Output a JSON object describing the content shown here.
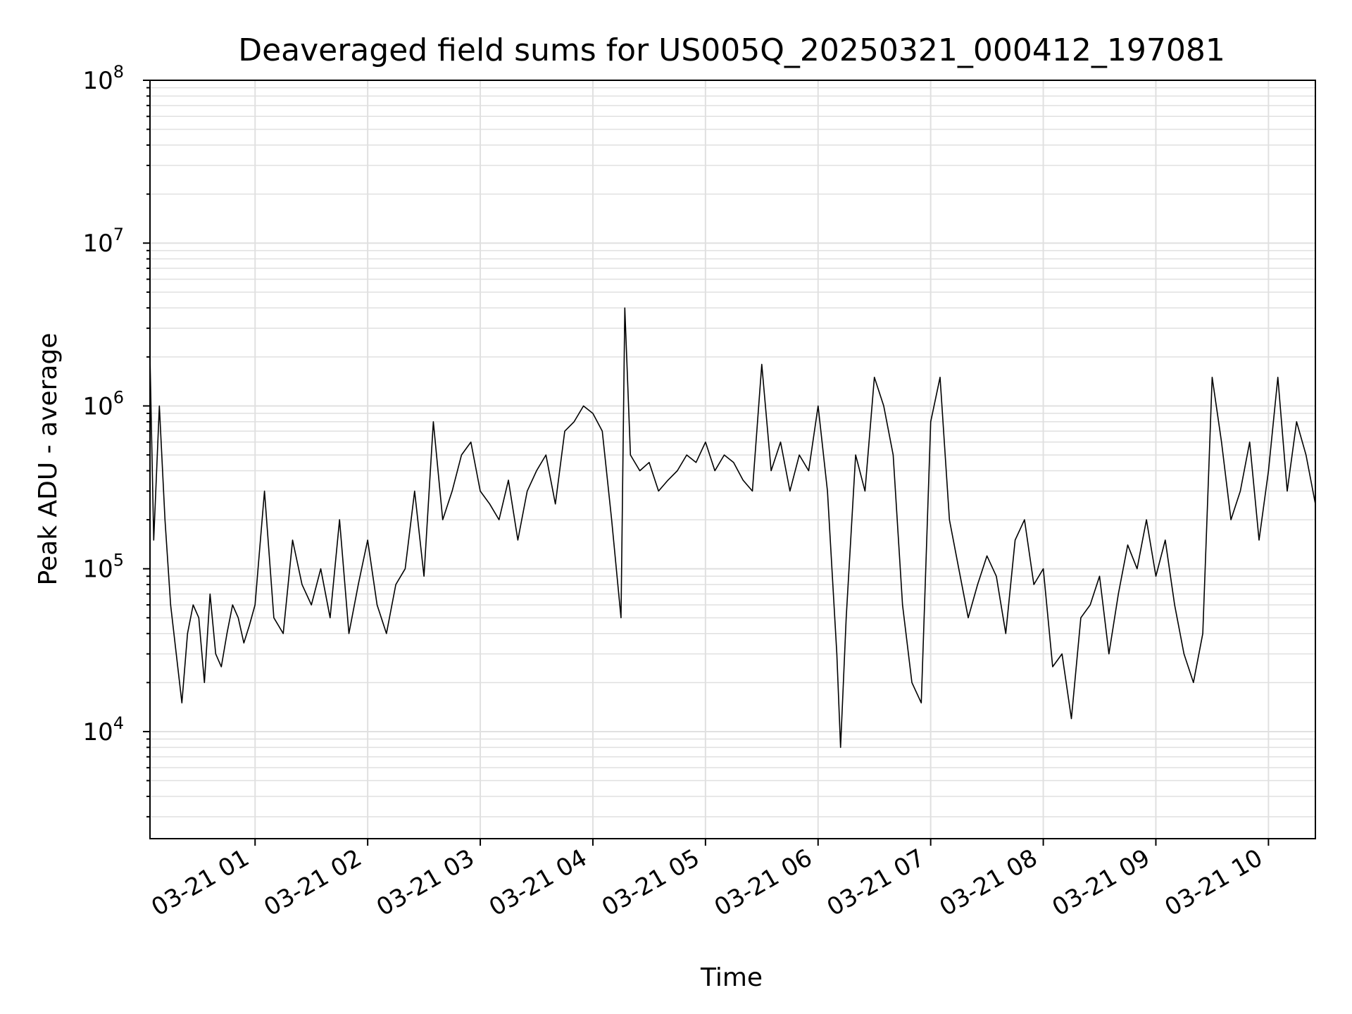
{
  "chart_data": {
    "type": "line",
    "title": "Deaveraged field sums for US005Q_20250321_000412_197081",
    "xlabel": "Time",
    "ylabel": "Peak ADU - average",
    "yscale": "log",
    "ylim": [
      2200,
      100000000
    ],
    "y_ticks": [
      {
        "value": 10000,
        "base": "10",
        "exp": "4"
      },
      {
        "value": 100000,
        "base": "10",
        "exp": "5"
      },
      {
        "value": 1000000,
        "base": "10",
        "exp": "6"
      },
      {
        "value": 10000000,
        "base": "10",
        "exp": "7"
      },
      {
        "value": 100000000,
        "base": "10",
        "exp": "8"
      }
    ],
    "xlim": [
      "03-21 00:04",
      "03-21 10:25"
    ],
    "x_ticks": [
      {
        "value": "03-21 01:00",
        "label": "03-21 01"
      },
      {
        "value": "03-21 02:00",
        "label": "03-21 02"
      },
      {
        "value": "03-21 03:00",
        "label": "03-21 03"
      },
      {
        "value": "03-21 04:00",
        "label": "03-21 04"
      },
      {
        "value": "03-21 05:00",
        "label": "03-21 05"
      },
      {
        "value": "03-21 06:00",
        "label": "03-21 06"
      },
      {
        "value": "03-21 07:00",
        "label": "03-21 07"
      },
      {
        "value": "03-21 08:00",
        "label": "03-21 08"
      },
      {
        "value": "03-21 09:00",
        "label": "03-21 09"
      },
      {
        "value": "03-21 10:00",
        "label": "03-21 10"
      }
    ],
    "grid": true,
    "line_color": "#000000",
    "series": [
      {
        "x": [
          "03-21 00:04",
          "03-21 00:06",
          "03-21 00:09",
          "03-21 00:12",
          "03-21 00:15",
          "03-21 00:18",
          "03-21 00:21",
          "03-21 00:24",
          "03-21 00:27",
          "03-21 00:30",
          "03-21 00:33",
          "03-21 00:36",
          "03-21 00:39",
          "03-21 00:42",
          "03-21 00:45",
          "03-21 00:48",
          "03-21 00:51",
          "03-21 00:54",
          "03-21 00:57",
          "03-21 01:00",
          "03-21 01:05",
          "03-21 01:10",
          "03-21 01:15",
          "03-21 01:20",
          "03-21 01:25",
          "03-21 01:30",
          "03-21 01:35",
          "03-21 01:40",
          "03-21 01:45",
          "03-21 01:50",
          "03-21 01:55",
          "03-21 02:00",
          "03-21 02:05",
          "03-21 02:10",
          "03-21 02:15",
          "03-21 02:20",
          "03-21 02:25",
          "03-21 02:30",
          "03-21 02:35",
          "03-21 02:40",
          "03-21 02:45",
          "03-21 02:50",
          "03-21 02:55",
          "03-21 03:00",
          "03-21 03:05",
          "03-21 03:10",
          "03-21 03:15",
          "03-21 03:20",
          "03-21 03:25",
          "03-21 03:30",
          "03-21 03:35",
          "03-21 03:40",
          "03-21 03:45",
          "03-21 03:50",
          "03-21 03:55",
          "03-21 04:00",
          "03-21 04:05",
          "03-21 04:10",
          "03-21 04:15",
          "03-21 04:17",
          "03-21 04:20",
          "03-21 04:25",
          "03-21 04:30",
          "03-21 04:35",
          "03-21 04:40",
          "03-21 04:45",
          "03-21 04:50",
          "03-21 04:55",
          "03-21 05:00",
          "03-21 05:05",
          "03-21 05:10",
          "03-21 05:15",
          "03-21 05:20",
          "03-21 05:25",
          "03-21 05:30",
          "03-21 05:35",
          "03-21 05:40",
          "03-21 05:45",
          "03-21 05:50",
          "03-21 05:55",
          "03-21 06:00",
          "03-21 06:05",
          "03-21 06:10",
          "03-21 06:12",
          "03-21 06:15",
          "03-21 06:20",
          "03-21 06:25",
          "03-21 06:30",
          "03-21 06:35",
          "03-21 06:40",
          "03-21 06:45",
          "03-21 06:50",
          "03-21 06:55",
          "03-21 07:00",
          "03-21 07:05",
          "03-21 07:10",
          "03-21 07:15",
          "03-21 07:20",
          "03-21 07:25",
          "03-21 07:30",
          "03-21 07:35",
          "03-21 07:40",
          "03-21 07:45",
          "03-21 07:50",
          "03-21 07:55",
          "03-21 08:00",
          "03-21 08:05",
          "03-21 08:10",
          "03-21 08:15",
          "03-21 08:20",
          "03-21 08:25",
          "03-21 08:30",
          "03-21 08:35",
          "03-21 08:40",
          "03-21 08:45",
          "03-21 08:50",
          "03-21 08:55",
          "03-21 09:00",
          "03-21 09:05",
          "03-21 09:10",
          "03-21 09:15",
          "03-21 09:20",
          "03-21 09:25",
          "03-21 09:30",
          "03-21 09:35",
          "03-21 09:40",
          "03-21 09:45",
          "03-21 09:50",
          "03-21 09:55",
          "03-21 10:00",
          "03-21 10:05",
          "03-21 10:10",
          "03-21 10:15",
          "03-21 10:20",
          "03-21 10:25"
        ],
        "y": [
          2000000,
          150000,
          1000000,
          200000,
          60000,
          30000,
          15000,
          40000,
          60000,
          50000,
          20000,
          70000,
          30000,
          25000,
          40000,
          60000,
          50000,
          35000,
          45000,
          60000,
          300000,
          50000,
          40000,
          150000,
          80000,
          60000,
          100000,
          50000,
          200000,
          40000,
          80000,
          150000,
          60000,
          40000,
          80000,
          100000,
          300000,
          90000,
          800000,
          200000,
          300000,
          500000,
          600000,
          300000,
          250000,
          200000,
          350000,
          150000,
          300000,
          400000,
          500000,
          250000,
          700000,
          800000,
          1000000,
          900000,
          700000,
          200000,
          50000,
          4000000,
          500000,
          400000,
          450000,
          300000,
          350000,
          400000,
          500000,
          450000,
          600000,
          400000,
          500000,
          450000,
          350000,
          300000,
          1800000,
          400000,
          600000,
          300000,
          500000,
          400000,
          1000000,
          300000,
          30000,
          8000,
          50000,
          500000,
          300000,
          1500000,
          1000000,
          500000,
          60000,
          20000,
          15000,
          800000,
          1500000,
          200000,
          100000,
          50000,
          80000,
          120000,
          90000,
          40000,
          150000,
          200000,
          80000,
          100000,
          25000,
          30000,
          12000,
          50000,
          60000,
          90000,
          30000,
          70000,
          140000,
          100000,
          200000,
          90000,
          150000,
          60000,
          30000,
          20000,
          40000,
          1500000,
          600000,
          200000,
          300000,
          600000,
          150000,
          400000,
          1500000,
          300000,
          800000,
          500000,
          250000
        ]
      }
    ]
  }
}
